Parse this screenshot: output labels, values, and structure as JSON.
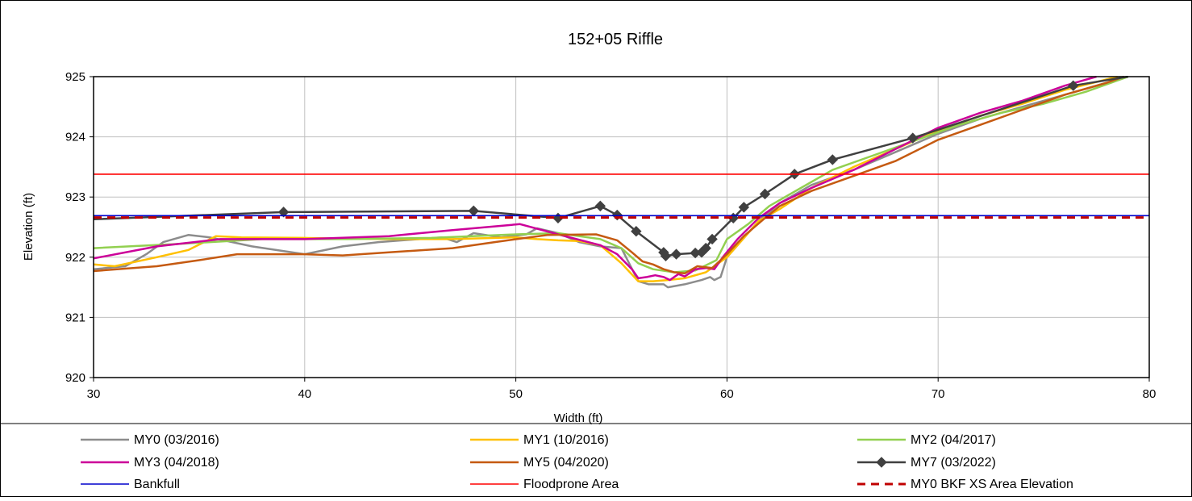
{
  "chart_data": {
    "type": "line",
    "title": "152+05 Riffle",
    "xlabel": "Width (ft)",
    "ylabel": "Elevation (ft)",
    "xlim": [
      30,
      80
    ],
    "ylim": [
      920,
      925
    ],
    "xticks": [
      "30",
      "40",
      "50",
      "60",
      "70",
      "80"
    ],
    "yticks": [
      "920",
      "921",
      "922",
      "923",
      "924",
      "925"
    ],
    "grid": true,
    "legend_position": "bottom",
    "series": [
      {
        "name": "MY0 (03/2016)",
        "color": "#8c8c8c",
        "dash": "none",
        "marker": "none",
        "points": [
          [
            30,
            921.8
          ],
          [
            31.5,
            921.85
          ],
          [
            32.5,
            922.05
          ],
          [
            33.3,
            922.25
          ],
          [
            34.5,
            922.37
          ],
          [
            35.5,
            922.33
          ],
          [
            37.5,
            922.18
          ],
          [
            40,
            922.05
          ],
          [
            41.8,
            922.18
          ],
          [
            43.5,
            922.25
          ],
          [
            46.5,
            922.33
          ],
          [
            47.2,
            922.25
          ],
          [
            48,
            922.4
          ],
          [
            49.3,
            922.33
          ],
          [
            50.5,
            922.38
          ],
          [
            51,
            922.48
          ],
          [
            52,
            922.4
          ],
          [
            53,
            922.25
          ],
          [
            54,
            922.18
          ],
          [
            55,
            922.15
          ],
          [
            55.8,
            921.6
          ],
          [
            56.3,
            921.55
          ],
          [
            57,
            921.55
          ],
          [
            57.2,
            921.5
          ],
          [
            58,
            921.55
          ],
          [
            58.8,
            921.62
          ],
          [
            59.2,
            921.67
          ],
          [
            59.4,
            921.62
          ],
          [
            59.7,
            921.67
          ],
          [
            60,
            922.0
          ],
          [
            60.5,
            922.2
          ],
          [
            61.5,
            922.6
          ],
          [
            62.5,
            922.9
          ],
          [
            64,
            923.2
          ],
          [
            66,
            923.45
          ],
          [
            68,
            923.75
          ],
          [
            70,
            924.05
          ],
          [
            72,
            924.3
          ],
          [
            74,
            924.5
          ],
          [
            76,
            924.7
          ],
          [
            78,
            924.9
          ],
          [
            79,
            925.0
          ]
        ]
      },
      {
        "name": "MY1 (10/2016)",
        "color": "#ffc000",
        "dash": "none",
        "marker": "none",
        "points": [
          [
            30,
            921.88
          ],
          [
            31,
            921.85
          ],
          [
            33,
            922.0
          ],
          [
            34.5,
            922.12
          ],
          [
            35.8,
            922.35
          ],
          [
            37,
            922.33
          ],
          [
            40,
            922.32
          ],
          [
            44,
            922.3
          ],
          [
            47,
            922.3
          ],
          [
            50,
            922.33
          ],
          [
            51,
            922.3
          ],
          [
            52,
            922.28
          ],
          [
            53,
            922.27
          ],
          [
            54,
            922.2
          ],
          [
            55,
            921.9
          ],
          [
            55.8,
            921.6
          ],
          [
            56.5,
            921.6
          ],
          [
            57.2,
            921.62
          ],
          [
            58,
            921.65
          ],
          [
            59,
            921.75
          ],
          [
            60,
            922.0
          ],
          [
            61,
            922.4
          ],
          [
            61.5,
            922.6
          ],
          [
            62.5,
            922.8
          ],
          [
            64,
            923.15
          ],
          [
            66,
            923.5
          ],
          [
            68,
            923.8
          ],
          [
            70,
            924.1
          ],
          [
            72,
            924.35
          ],
          [
            74,
            924.55
          ],
          [
            76,
            924.78
          ],
          [
            78.5,
            925.0
          ]
        ]
      },
      {
        "name": "MY2 (04/2017)",
        "color": "#92d050",
        "dash": "none",
        "marker": "none",
        "points": [
          [
            30,
            922.15
          ],
          [
            34,
            922.22
          ],
          [
            38,
            922.3
          ],
          [
            42,
            922.3
          ],
          [
            46,
            922.32
          ],
          [
            50,
            922.38
          ],
          [
            52,
            922.4
          ],
          [
            54,
            922.3
          ],
          [
            55,
            922.15
          ],
          [
            55.8,
            921.9
          ],
          [
            56.5,
            921.8
          ],
          [
            57.5,
            921.75
          ],
          [
            58.5,
            921.78
          ],
          [
            59.5,
            921.95
          ],
          [
            60,
            922.3
          ],
          [
            61,
            922.55
          ],
          [
            62,
            922.85
          ],
          [
            63.5,
            923.15
          ],
          [
            65,
            923.45
          ],
          [
            67,
            923.7
          ],
          [
            69,
            923.95
          ],
          [
            71,
            924.2
          ],
          [
            73,
            924.4
          ],
          [
            75,
            924.55
          ],
          [
            77,
            924.75
          ],
          [
            79,
            925.0
          ]
        ]
      },
      {
        "name": "MY3 (04/2018)",
        "color": "#cc0099",
        "dash": "none",
        "marker": "none",
        "points": [
          [
            30,
            921.98
          ],
          [
            33,
            922.18
          ],
          [
            36,
            922.3
          ],
          [
            40,
            922.3
          ],
          [
            44,
            922.35
          ],
          [
            47,
            922.45
          ],
          [
            50.2,
            922.55
          ],
          [
            52,
            922.38
          ],
          [
            54,
            922.2
          ],
          [
            54.8,
            922.05
          ],
          [
            55.5,
            921.8
          ],
          [
            55.8,
            921.65
          ],
          [
            56.2,
            921.67
          ],
          [
            56.6,
            921.7
          ],
          [
            57,
            921.67
          ],
          [
            57.3,
            921.62
          ],
          [
            57.7,
            921.72
          ],
          [
            58,
            921.68
          ],
          [
            58.5,
            921.8
          ],
          [
            59,
            921.82
          ],
          [
            59.4,
            921.8
          ],
          [
            59.8,
            922.0
          ],
          [
            60.5,
            922.3
          ],
          [
            61.5,
            922.65
          ],
          [
            62.5,
            922.9
          ],
          [
            64,
            923.15
          ],
          [
            66,
            923.45
          ],
          [
            68,
            923.8
          ],
          [
            70,
            924.15
          ],
          [
            72,
            924.4
          ],
          [
            74,
            924.6
          ],
          [
            76,
            924.85
          ],
          [
            77.5,
            925.0
          ]
        ]
      },
      {
        "name": "MY5 (04/2020)",
        "color": "#c55a11",
        "dash": "none",
        "marker": "none",
        "points": [
          [
            30,
            921.77
          ],
          [
            33,
            921.85
          ],
          [
            35,
            921.95
          ],
          [
            36.8,
            922.05
          ],
          [
            40,
            922.05
          ],
          [
            41.8,
            922.03
          ],
          [
            44,
            922.08
          ],
          [
            47,
            922.15
          ],
          [
            49,
            922.25
          ],
          [
            51.5,
            922.37
          ],
          [
            53.8,
            922.38
          ],
          [
            54.8,
            922.28
          ],
          [
            55.5,
            922.08
          ],
          [
            56,
            921.93
          ],
          [
            56.5,
            921.88
          ],
          [
            57,
            921.8
          ],
          [
            57.5,
            921.75
          ],
          [
            58,
            921.73
          ],
          [
            58.6,
            921.85
          ],
          [
            59.3,
            921.82
          ],
          [
            60,
            922.05
          ],
          [
            60.8,
            922.35
          ],
          [
            61.8,
            922.65
          ],
          [
            62.5,
            922.85
          ],
          [
            64,
            923.1
          ],
          [
            66,
            923.35
          ],
          [
            68,
            923.6
          ],
          [
            70,
            923.95
          ],
          [
            72,
            924.2
          ],
          [
            74,
            924.45
          ],
          [
            76,
            924.7
          ],
          [
            78,
            924.9
          ],
          [
            78.8,
            925.0
          ]
        ]
      },
      {
        "name": "MY7 (03/2022)",
        "color": "#404040",
        "dash": "none",
        "marker": "diamond",
        "points": [
          [
            30,
            922.63
          ],
          [
            39,
            922.75
          ],
          [
            48,
            922.77
          ],
          [
            52,
            922.65
          ],
          [
            54,
            922.85
          ],
          [
            54.8,
            922.7
          ],
          [
            55.7,
            922.43
          ],
          [
            57,
            922.08
          ],
          [
            57.1,
            922.02
          ],
          [
            57.6,
            922.05
          ],
          [
            58.5,
            922.07
          ],
          [
            58.8,
            922.08
          ],
          [
            59,
            922.15
          ],
          [
            59.3,
            922.3
          ],
          [
            60.3,
            922.65
          ],
          [
            60.8,
            922.83
          ],
          [
            61.8,
            923.05
          ],
          [
            63.2,
            923.38
          ],
          [
            65,
            923.62
          ],
          [
            68.8,
            923.98
          ],
          [
            76.4,
            924.85
          ],
          [
            79,
            925.0
          ]
        ]
      },
      {
        "name": "Bankfull",
        "color": "#0000cc",
        "dash": "none",
        "marker": "none",
        "points": [
          [
            30,
            922.69
          ],
          [
            80,
            922.69
          ]
        ]
      },
      {
        "name": "Floodprone Area",
        "color": "#ff0000",
        "dash": "none",
        "marker": "none",
        "points": [
          [
            30,
            923.38
          ],
          [
            80,
            923.38
          ]
        ]
      },
      {
        "name": "MY0 BKF XS Area Elevation",
        "color": "#c00000",
        "dash": "dashed",
        "marker": "none",
        "points": [
          [
            30,
            922.66
          ],
          [
            80,
            922.66
          ]
        ]
      }
    ]
  }
}
